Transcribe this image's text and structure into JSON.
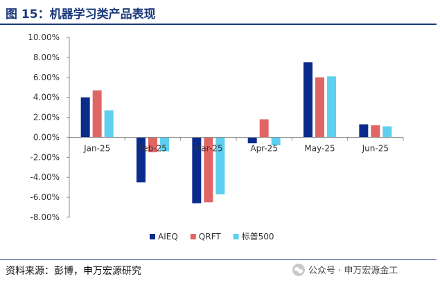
{
  "title": "图 15：机器学习类产品表现",
  "source": "资料来源：彭博，申万宏源研究",
  "watermark": "公众号 · 申万宏源金工",
  "colors": {
    "title": "#1b3a7a",
    "AIEQ": "#0a2a8c",
    "QRFT": "#e06666",
    "标普500": "#5ecfee"
  },
  "chart_data": {
    "type": "bar",
    "categories": [
      "Jan-25",
      "Feb-25",
      "Mar-25",
      "Apr-25",
      "May-25",
      "Jun-25"
    ],
    "y_tick_labels": [
      "10.00%",
      "8.00%",
      "6.00%",
      "4.00%",
      "2.00%",
      "0.00%",
      "-2.00%",
      "-4.00%",
      "-6.00%",
      "-8.00%"
    ],
    "ylim": [
      -8,
      10
    ],
    "y_unit": "%",
    "legend_position": "bottom-right",
    "grid": false,
    "series": [
      {
        "name": "AIEQ",
        "color": "#0a2a8c",
        "values": [
          4.0,
          -4.5,
          -6.6,
          -0.6,
          7.5,
          1.3
        ]
      },
      {
        "name": "QRFT",
        "color": "#e06666",
        "values": [
          4.7,
          -1.5,
          -6.5,
          1.8,
          6.0,
          1.2
        ]
      },
      {
        "name": "标普500",
        "color": "#5ecfee",
        "values": [
          2.7,
          -1.4,
          -5.7,
          -0.8,
          6.1,
          1.1
        ]
      }
    ]
  }
}
